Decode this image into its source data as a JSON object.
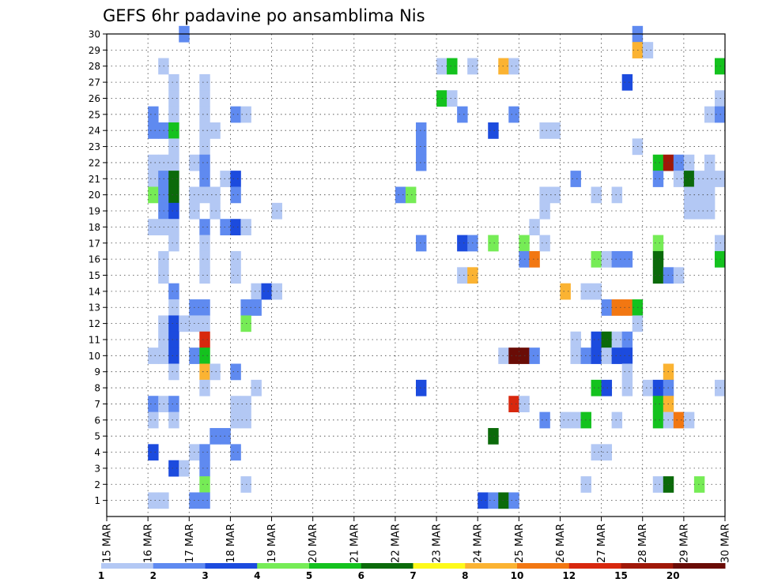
{
  "chart_data": {
    "type": "heatmap",
    "title": "GEFS 6hr padavine po ansamblima Nis",
    "xlabel": "",
    "ylabel": "",
    "y_ticks": [
      "1",
      "2",
      "3",
      "4",
      "5",
      "6",
      "7",
      "8",
      "9",
      "10",
      "11",
      "12",
      "13",
      "14",
      "15",
      "16",
      "17",
      "18",
      "19",
      "20",
      "21",
      "22",
      "23",
      "24",
      "25",
      "26",
      "27",
      "28",
      "29",
      "30"
    ],
    "x_ticks": [
      "15 MAR",
      "16 MAR",
      "17 MAR",
      "18 MAR",
      "19 MAR",
      "20 MAR",
      "21 MAR",
      "22 MAR",
      "23 MAR",
      "24 MAR",
      "25 MAR",
      "26 MAR",
      "27 MAR",
      "28 MAR",
      "29 MAR",
      "30 MAR"
    ],
    "x_range": [
      "15 MAR 00",
      "30 MAR 00"
    ],
    "y_range": [
      0,
      30
    ],
    "time_step_hours": 6,
    "grid": "dotted",
    "legend_position": "bottom",
    "legend": {
      "tick_labels": [
        "1",
        "2",
        "3",
        "4",
        "5",
        "6",
        "7",
        "8",
        "10",
        "12",
        "15",
        "20"
      ],
      "colors": [
        "#b3c8f4",
        "#5f8af0",
        "#1c4bde",
        "#76ec56",
        "#14c21e",
        "#0b6a0a",
        "#fefa1a",
        "#fbb332",
        "#f27712",
        "#d8280e",
        "#a01808",
        "#6a0c06"
      ]
    },
    "cells": [
      [
        30,
        16.75,
        2
      ],
      [
        30,
        27.75,
        2
      ],
      [
        29,
        27.75,
        8
      ],
      [
        29,
        28.0,
        1
      ],
      [
        28,
        16.25,
        1
      ],
      [
        28,
        23.0,
        1
      ],
      [
        28,
        23.25,
        5
      ],
      [
        28,
        23.75,
        1
      ],
      [
        28,
        24.5,
        8
      ],
      [
        28,
        24.75,
        1
      ],
      [
        28,
        29.75,
        5
      ],
      [
        27,
        16.5,
        1
      ],
      [
        27,
        17.25,
        1
      ],
      [
        27,
        27.5,
        3
      ],
      [
        26,
        16.5,
        1
      ],
      [
        26,
        17.25,
        1
      ],
      [
        26,
        23.0,
        5
      ],
      [
        26,
        23.25,
        1
      ],
      [
        26,
        29.75,
        1
      ],
      [
        25,
        16.0,
        2
      ],
      [
        25,
        16.5,
        1
      ],
      [
        25,
        17.25,
        1
      ],
      [
        25,
        18.0,
        2
      ],
      [
        25,
        18.25,
        1
      ],
      [
        25,
        23.5,
        2
      ],
      [
        25,
        24.75,
        2
      ],
      [
        25,
        29.5,
        1
      ],
      [
        25,
        29.75,
        2
      ],
      [
        24,
        16.0,
        2
      ],
      [
        24,
        16.25,
        2
      ],
      [
        24,
        16.5,
        5
      ],
      [
        24,
        17.25,
        1
      ],
      [
        24,
        17.5,
        1
      ],
      [
        24,
        22.5,
        2
      ],
      [
        24,
        24.25,
        3
      ],
      [
        24,
        25.5,
        1
      ],
      [
        24,
        25.75,
        1
      ],
      [
        23,
        16.5,
        1
      ],
      [
        23,
        17.25,
        1
      ],
      [
        23,
        22.5,
        2
      ],
      [
        23,
        27.75,
        1
      ],
      [
        22,
        16.0,
        1
      ],
      [
        22,
        16.25,
        1
      ],
      [
        22,
        16.5,
        1
      ],
      [
        22,
        17.0,
        1
      ],
      [
        22,
        17.25,
        2
      ],
      [
        22,
        22.5,
        2
      ],
      [
        22,
        28.25,
        5
      ],
      [
        22,
        28.5,
        11
      ],
      [
        22,
        28.75,
        2
      ],
      [
        22,
        29.0,
        1
      ],
      [
        22,
        29.5,
        1
      ],
      [
        21,
        16.0,
        1
      ],
      [
        21,
        16.25,
        2
      ],
      [
        21,
        16.5,
        6
      ],
      [
        21,
        17.25,
        2
      ],
      [
        21,
        17.75,
        1
      ],
      [
        21,
        18.0,
        3
      ],
      [
        21,
        26.25,
        2
      ],
      [
        21,
        28.25,
        2
      ],
      [
        21,
        28.75,
        1
      ],
      [
        21,
        29.0,
        6
      ],
      [
        21,
        29.25,
        1
      ],
      [
        21,
        29.5,
        1
      ],
      [
        21,
        29.75,
        1
      ],
      [
        20,
        16.0,
        4
      ],
      [
        20,
        16.25,
        2
      ],
      [
        20,
        16.5,
        6
      ],
      [
        20,
        17.0,
        1
      ],
      [
        20,
        17.25,
        1
      ],
      [
        20,
        17.5,
        1
      ],
      [
        20,
        18.0,
        2
      ],
      [
        20,
        22.0,
        2
      ],
      [
        20,
        22.25,
        4
      ],
      [
        20,
        25.5,
        1
      ],
      [
        20,
        25.75,
        1
      ],
      [
        20,
        26.75,
        1
      ],
      [
        20,
        27.25,
        1
      ],
      [
        20,
        29.0,
        1
      ],
      [
        20,
        29.25,
        1
      ],
      [
        20,
        29.5,
        1
      ],
      [
        19,
        16.25,
        2
      ],
      [
        19,
        16.5,
        3
      ],
      [
        19,
        17.0,
        1
      ],
      [
        19,
        17.5,
        1
      ],
      [
        19,
        19.0,
        1
      ],
      [
        19,
        25.5,
        1
      ],
      [
        19,
        29.0,
        1
      ],
      [
        19,
        29.25,
        1
      ],
      [
        19,
        29.5,
        1
      ],
      [
        18,
        16.0,
        1
      ],
      [
        18,
        16.25,
        1
      ],
      [
        18,
        16.5,
        1
      ],
      [
        18,
        17.25,
        2
      ],
      [
        18,
        17.75,
        2
      ],
      [
        18,
        18.0,
        3
      ],
      [
        18,
        18.25,
        1
      ],
      [
        18,
        25.25,
        1
      ],
      [
        17,
        16.5,
        1
      ],
      [
        17,
        17.25,
        1
      ],
      [
        17,
        22.5,
        2
      ],
      [
        17,
        23.5,
        3
      ],
      [
        17,
        23.75,
        2
      ],
      [
        17,
        24.25,
        4
      ],
      [
        17,
        25.0,
        4
      ],
      [
        17,
        25.5,
        1
      ],
      [
        17,
        28.25,
        4
      ],
      [
        17,
        29.75,
        1
      ],
      [
        16,
        16.25,
        1
      ],
      [
        16,
        17.25,
        1
      ],
      [
        16,
        18.0,
        1
      ],
      [
        16,
        25.0,
        2
      ],
      [
        16,
        25.25,
        9
      ],
      [
        16,
        26.75,
        4
      ],
      [
        16,
        27.0,
        1
      ],
      [
        16,
        27.25,
        2
      ],
      [
        16,
        27.5,
        2
      ],
      [
        16,
        28.25,
        6
      ],
      [
        16,
        29.75,
        5
      ],
      [
        15,
        16.25,
        1
      ],
      [
        15,
        17.25,
        1
      ],
      [
        15,
        18.0,
        1
      ],
      [
        15,
        23.5,
        1
      ],
      [
        15,
        23.75,
        8
      ],
      [
        15,
        28.25,
        6
      ],
      [
        15,
        28.5,
        2
      ],
      [
        15,
        28.75,
        1
      ],
      [
        14,
        16.5,
        2
      ],
      [
        14,
        18.5,
        1
      ],
      [
        14,
        18.75,
        3
      ],
      [
        14,
        19.0,
        1
      ],
      [
        14,
        26.0,
        8
      ],
      [
        14,
        26.5,
        1
      ],
      [
        14,
        26.75,
        1
      ],
      [
        13,
        16.5,
        1
      ],
      [
        13,
        17.0,
        2
      ],
      [
        13,
        17.25,
        2
      ],
      [
        13,
        18.25,
        2
      ],
      [
        13,
        18.5,
        2
      ],
      [
        13,
        27.0,
        2
      ],
      [
        13,
        27.25,
        9
      ],
      [
        13,
        27.5,
        9
      ],
      [
        13,
        27.75,
        5
      ],
      [
        12,
        16.25,
        1
      ],
      [
        12,
        16.5,
        3
      ],
      [
        12,
        16.75,
        1
      ],
      [
        12,
        17.0,
        1
      ],
      [
        12,
        17.25,
        1
      ],
      [
        12,
        18.25,
        4
      ],
      [
        12,
        27.75,
        1
      ],
      [
        11,
        16.25,
        1
      ],
      [
        11,
        16.5,
        3
      ],
      [
        11,
        17.25,
        10
      ],
      [
        11,
        26.25,
        1
      ],
      [
        11,
        26.75,
        3
      ],
      [
        11,
        27.0,
        6
      ],
      [
        11,
        27.25,
        1
      ],
      [
        11,
        27.5,
        2
      ],
      [
        10,
        16.0,
        1
      ],
      [
        10,
        16.25,
        1
      ],
      [
        10,
        16.5,
        3
      ],
      [
        10,
        17.0,
        2
      ],
      [
        10,
        17.25,
        5
      ],
      [
        10,
        24.5,
        1
      ],
      [
        10,
        24.75,
        12
      ],
      [
        10,
        25.0,
        13
      ],
      [
        10,
        25.25,
        2
      ],
      [
        10,
        26.25,
        1
      ],
      [
        10,
        26.5,
        2
      ],
      [
        10,
        26.75,
        3
      ],
      [
        10,
        27.0,
        1
      ],
      [
        10,
        27.25,
        3
      ],
      [
        10,
        27.5,
        3
      ],
      [
        9,
        16.5,
        1
      ],
      [
        9,
        17.25,
        8
      ],
      [
        9,
        17.5,
        1
      ],
      [
        9,
        18.0,
        2
      ],
      [
        9,
        27.5,
        1
      ],
      [
        9,
        28.5,
        8
      ],
      [
        8,
        17.25,
        1
      ],
      [
        8,
        18.5,
        1
      ],
      [
        8,
        22.5,
        3
      ],
      [
        8,
        26.75,
        5
      ],
      [
        8,
        27.0,
        3
      ],
      [
        8,
        27.5,
        1
      ],
      [
        8,
        28.0,
        1
      ],
      [
        8,
        28.25,
        3
      ],
      [
        8,
        28.5,
        2
      ],
      [
        8,
        29.75,
        1
      ],
      [
        7,
        16.0,
        2
      ],
      [
        7,
        16.25,
        1
      ],
      [
        7,
        16.5,
        2
      ],
      [
        7,
        18.0,
        1
      ],
      [
        7,
        18.25,
        1
      ],
      [
        7,
        24.75,
        10
      ],
      [
        7,
        25.0,
        1
      ],
      [
        7,
        28.25,
        5
      ],
      [
        7,
        28.5,
        8
      ],
      [
        6,
        16.0,
        1
      ],
      [
        6,
        16.5,
        1
      ],
      [
        6,
        18.0,
        1
      ],
      [
        6,
        18.25,
        1
      ],
      [
        6,
        25.5,
        2
      ],
      [
        6,
        26.0,
        1
      ],
      [
        6,
        26.25,
        1
      ],
      [
        6,
        26.5,
        5
      ],
      [
        6,
        27.25,
        1
      ],
      [
        6,
        28.25,
        5
      ],
      [
        6,
        28.5,
        1
      ],
      [
        6,
        28.75,
        9
      ],
      [
        6,
        29.0,
        1
      ],
      [
        5,
        17.5,
        2
      ],
      [
        5,
        17.75,
        2
      ],
      [
        5,
        24.25,
        6
      ],
      [
        4,
        16.0,
        3
      ],
      [
        4,
        17.0,
        1
      ],
      [
        4,
        17.25,
        2
      ],
      [
        4,
        18.0,
        2
      ],
      [
        4,
        26.75,
        1
      ],
      [
        4,
        27.0,
        1
      ],
      [
        3,
        16.5,
        3
      ],
      [
        3,
        16.75,
        1
      ],
      [
        3,
        17.25,
        2
      ],
      [
        2,
        17.25,
        4
      ],
      [
        2,
        18.25,
        1
      ],
      [
        2,
        26.5,
        1
      ],
      [
        2,
        28.25,
        1
      ],
      [
        2,
        28.5,
        6
      ],
      [
        2,
        29.25,
        4
      ],
      [
        1,
        16.0,
        1
      ],
      [
        1,
        16.25,
        1
      ],
      [
        1,
        17.0,
        2
      ],
      [
        1,
        17.25,
        2
      ],
      [
        1,
        24.0,
        3
      ],
      [
        1,
        24.25,
        2
      ],
      [
        1,
        24.5,
        6
      ],
      [
        1,
        24.75,
        2
      ]
    ]
  }
}
